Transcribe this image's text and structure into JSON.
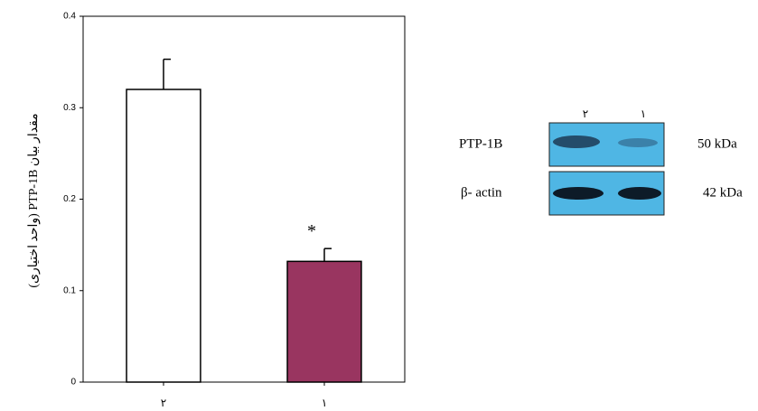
{
  "chart_data": {
    "type": "bar",
    "y_label": "مقدار بیان PTP-1B (واحد اختیاری)",
    "categories": [
      "۲",
      "۱"
    ],
    "values": [
      0.32,
      0.132
    ],
    "errors": [
      0.033,
      0.014
    ],
    "colors": [
      "#ffffff",
      "#993560"
    ],
    "annotation": "*",
    "ylim": [
      0,
      0.4
    ],
    "yticks": [
      0,
      0.1,
      0.2,
      0.3,
      0.4
    ]
  },
  "blot": {
    "lanes": [
      "۲",
      "۱"
    ],
    "rows": [
      {
        "label": "PTP-1B",
        "size": "50 kDa"
      },
      {
        "label": "β- actin",
        "size": "42 kDa"
      }
    ]
  }
}
